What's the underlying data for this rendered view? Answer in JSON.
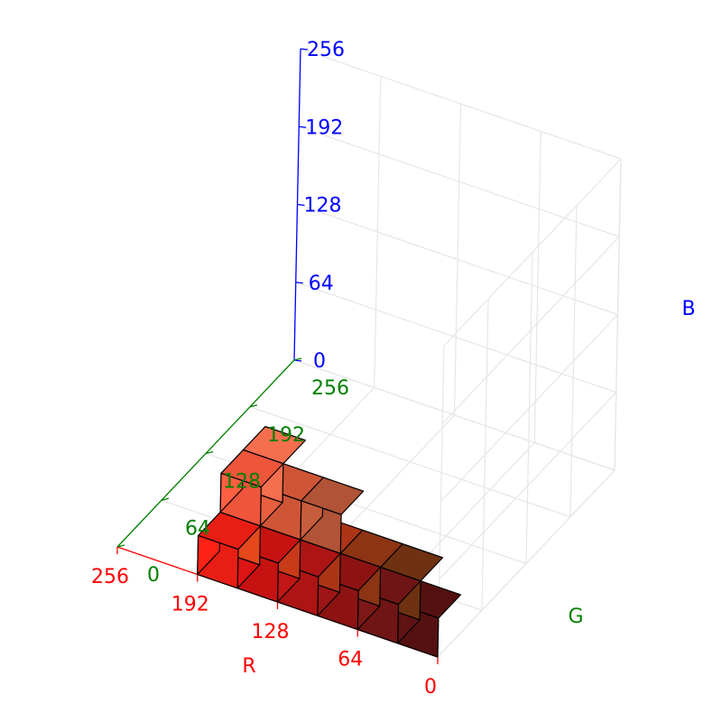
{
  "chart_data": {
    "type": "voxels3d",
    "title": "",
    "axes": {
      "r": {
        "label": "R",
        "ticks": [
          "0",
          "64",
          "128",
          "192",
          "256"
        ],
        "range": [
          0,
          256
        ],
        "color": "#ff0000"
      },
      "g": {
        "label": "G",
        "ticks": [
          "0",
          "64",
          "128",
          "192",
          "256"
        ],
        "range": [
          0,
          256
        ],
        "color": "#008000"
      },
      "b": {
        "label": "B",
        "ticks": [
          "0",
          "64",
          "128",
          "192",
          "256"
        ],
        "range": [
          0,
          256
        ],
        "color": "#0000ff"
      }
    },
    "grid": true,
    "bin_size": 32,
    "voxels": [
      {
        "r": 0,
        "g": 0,
        "b": 0,
        "color": "#551111"
      },
      {
        "r": 32,
        "g": 0,
        "b": 0,
        "color": "#701515"
      },
      {
        "r": 64,
        "g": 0,
        "b": 0,
        "color": "#8d1313"
      },
      {
        "r": 96,
        "g": 0,
        "b": 0,
        "color": "#ad1414"
      },
      {
        "r": 128,
        "g": 0,
        "b": 0,
        "color": "#c71212"
      },
      {
        "r": 160,
        "g": 0,
        "b": 0,
        "color": "#e81e14"
      },
      {
        "r": 160,
        "g": 32,
        "b": 0,
        "color": "#e4481c"
      },
      {
        "r": 160,
        "g": 64,
        "b": 0,
        "color": "#ef6120"
      },
      {
        "r": 32,
        "g": 32,
        "b": 0,
        "color": "#6e3212"
      },
      {
        "r": 64,
        "g": 32,
        "b": 0,
        "color": "#8c3414"
      },
      {
        "r": 96,
        "g": 32,
        "b": 0,
        "color": "#ac3518"
      },
      {
        "r": 128,
        "g": 32,
        "b": 0,
        "color": "#c83a18"
      },
      {
        "r": 96,
        "g": 32,
        "b": 32,
        "color": "#b15336"
      },
      {
        "r": 128,
        "g": 32,
        "b": 32,
        "color": "#cf5537"
      },
      {
        "r": 128,
        "g": 64,
        "b": 0,
        "color": "#d06636"
      },
      {
        "r": 160,
        "g": 32,
        "b": 32,
        "color": "#ee553b"
      },
      {
        "r": 160,
        "g": 64,
        "b": 32,
        "color": "#f56f4f"
      }
    ]
  }
}
